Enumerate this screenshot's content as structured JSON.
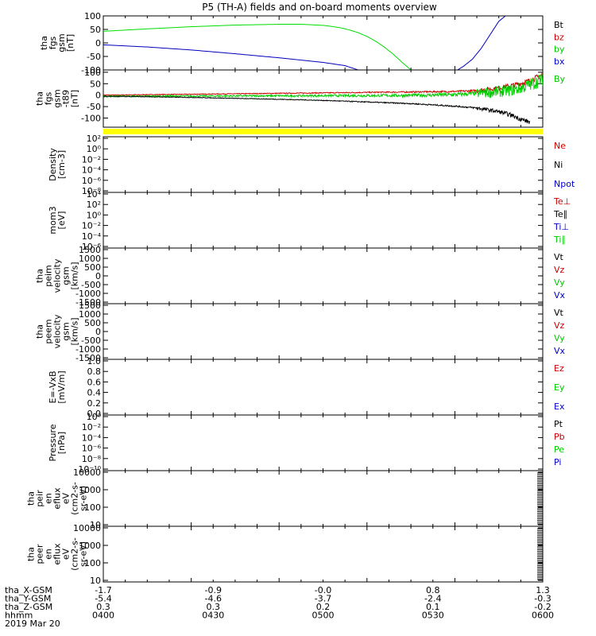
{
  "title": "P5 (TH-A) fields and on-board moments overview",
  "chart_data": [
    {
      "id": "fgs",
      "type": "line",
      "ylabel": [
        "tha",
        "fgs",
        "gsm",
        "[nT]"
      ],
      "ylim": [
        -100,
        100
      ],
      "yticks": [
        "100",
        "50",
        "0",
        "-50",
        "-100"
      ],
      "tick_values": [
        100,
        50,
        0,
        -50,
        -100
      ],
      "legend": [
        {
          "name": "Bt",
          "color": "#000000"
        },
        {
          "name": "bz",
          "color": "#cc0000"
        },
        {
          "name": "by",
          "color": "#00cc00"
        },
        {
          "name": "bx",
          "color": "#0000cc"
        }
      ],
      "series": [
        {
          "name": "by",
          "color": "#00dd00",
          "x": [
            0,
            0.1,
            0.2,
            0.3,
            0.4,
            0.45,
            0.5,
            0.52,
            0.54,
            0.56,
            0.58,
            0.6,
            0.62,
            0.64,
            0.66,
            0.68,
            0.7
          ],
          "y": [
            43,
            52,
            60,
            66,
            69,
            69,
            65,
            61,
            56,
            48,
            38,
            24,
            6,
            -16,
            -42,
            -72,
            -100
          ]
        },
        {
          "name": "bx",
          "color": "#0000bb",
          "x": [
            0,
            0.05,
            0.1,
            0.2,
            0.3,
            0.4,
            0.5,
            0.55,
            0.58
          ],
          "y": [
            -7,
            -11,
            -15,
            -26,
            -40,
            -55,
            -72,
            -84,
            -100
          ]
        },
        {
          "name": "Bt",
          "color": "#0000bb",
          "x": [
            0.806,
            0.82,
            0.84,
            0.86,
            0.88,
            0.9,
            0.915
          ],
          "y": [
            -100,
            -86,
            -60,
            -20,
            30,
            80,
            100
          ]
        }
      ]
    },
    {
      "id": "fgs_dsl",
      "type": "line",
      "ylabel": [
        "tha",
        "fgs",
        "gsm",
        "-t89",
        "[nT]"
      ],
      "ylim": [
        -140,
        110
      ],
      "yticks": [
        "100",
        "50",
        "0",
        "-50",
        "-100"
      ],
      "tick_values": [
        100,
        50,
        0,
        -50,
        -100
      ],
      "legend": [
        {
          "name": "By",
          "color": "#00cc00"
        }
      ],
      "series": [
        {
          "name": "Bz",
          "color": "#cc0000",
          "x": [
            0,
            0.2,
            0.4,
            0.6,
            0.7,
            0.8,
            0.85,
            0.88,
            0.91,
            0.94,
            0.97,
            0.99,
            1.0
          ],
          "y": [
            0,
            4,
            8,
            12,
            14,
            16,
            20,
            26,
            34,
            46,
            62,
            80,
            92
          ],
          "noise": 6
        },
        {
          "name": "By",
          "color": "#00cc00",
          "x": [
            0,
            0.2,
            0.4,
            0.6,
            0.7,
            0.8,
            0.85,
            0.9,
            0.94,
            0.97,
            1.0
          ],
          "y": [
            -5,
            -4,
            -3,
            -2,
            -1,
            2,
            8,
            15,
            25,
            45,
            70
          ],
          "noise": 14
        },
        {
          "name": "Bt",
          "color": "#000000",
          "x": [
            0,
            0.1,
            0.2,
            0.3,
            0.4,
            0.5,
            0.6,
            0.7,
            0.8,
            0.85,
            0.9,
            0.93,
            0.95,
            0.97
          ],
          "y": [
            -5,
            -7,
            -10,
            -14,
            -18,
            -23,
            -30,
            -37,
            -48,
            -56,
            -72,
            -88,
            -105,
            -118
          ],
          "noise": 5
        }
      ]
    },
    {
      "id": "density",
      "type": "line",
      "ylabel": [
        "Density",
        "[cm-3]"
      ],
      "yticks": [
        "10²",
        "10⁰",
        "10⁻²",
        "10⁻⁴",
        "10⁻⁶",
        "10⁻⁸"
      ],
      "legend": [
        {
          "name": "Ne",
          "color": "#cc0000"
        },
        {
          "name": "Ni",
          "color": "#000000"
        },
        {
          "name": "Npot",
          "color": "#0000cc"
        }
      ],
      "series": []
    },
    {
      "id": "temp",
      "type": "line",
      "ylabel": [
        "mom3",
        "[eV]"
      ],
      "yticks": [
        "10⁴",
        "10²",
        "10⁰",
        "10⁻²",
        "10⁻⁴",
        "10⁻⁶"
      ],
      "legend": [
        {
          "name": "Te⊥",
          "color": "#cc0000"
        },
        {
          "name": "Te∥",
          "color": "#000000"
        },
        {
          "name": "Ti⊥",
          "color": "#0000cc"
        },
        {
          "name": "Ti∥",
          "color": "#00cc00"
        }
      ],
      "series": []
    },
    {
      "id": "vi",
      "type": "line",
      "ylabel": [
        "tha",
        "peim",
        "velocity",
        "gsm",
        "[km/s]"
      ],
      "yticks": [
        "1500",
        "1000",
        "500",
        "0",
        "-500",
        "-1000",
        "-1500"
      ],
      "legend": [
        {
          "name": "Vt",
          "color": "#000000"
        },
        {
          "name": "Vz",
          "color": "#cc0000"
        },
        {
          "name": "Vy",
          "color": "#00cc00"
        },
        {
          "name": "Vx",
          "color": "#0000cc"
        }
      ],
      "series": []
    },
    {
      "id": "ve",
      "type": "line",
      "ylabel": [
        "tha",
        "peem",
        "velocity",
        "gsm",
        "[km/s]"
      ],
      "yticks": [
        "1500",
        "1000",
        "500",
        "0",
        "-500",
        "-1000",
        "-1500"
      ],
      "legend": [
        {
          "name": "Vt",
          "color": "#000000"
        },
        {
          "name": "Vz",
          "color": "#cc0000"
        },
        {
          "name": "Vy",
          "color": "#00cc00"
        },
        {
          "name": "Vx",
          "color": "#0000cc"
        }
      ],
      "series": []
    },
    {
      "id": "efield",
      "type": "line",
      "ylabel": [
        "E=-VxB",
        "[mV/m]"
      ],
      "yticks": [
        "1.0",
        "0.8",
        "0.6",
        "0.4",
        "0.2",
        "0.0"
      ],
      "legend": [
        {
          "name": "Ez",
          "color": "#cc0000"
        },
        {
          "name": "Ey",
          "color": "#00cc00"
        },
        {
          "name": "Ex",
          "color": "#0000cc"
        }
      ],
      "series": []
    },
    {
      "id": "pressure",
      "type": "line",
      "ylabel": [
        "Pressure",
        "[nPa]"
      ],
      "yticks": [
        "10⁰",
        "10⁻²",
        "10⁻⁴",
        "10⁻⁶",
        "10⁻⁸",
        "10⁻¹⁰"
      ],
      "legend": [
        {
          "name": "Pt",
          "color": "#000000"
        },
        {
          "name": "Pb",
          "color": "#cc0000"
        },
        {
          "name": "Pe",
          "color": "#00cc00"
        },
        {
          "name": "Pi",
          "color": "#0000cc"
        }
      ],
      "series": []
    },
    {
      "id": "peir",
      "type": "spectrogram",
      "ylabel": [
        "tha",
        "peir",
        "en",
        "eflux",
        "eV",
        "(cm2-s-",
        "sr-eV)"
      ],
      "yticks": [
        "10000",
        "1000",
        "100",
        "10"
      ],
      "legend": [],
      "series": []
    },
    {
      "id": "peer",
      "type": "spectrogram",
      "ylabel": [
        "tha",
        "peer",
        "en",
        "eflux",
        "eV",
        "(cm2-s-",
        "sr-eV)"
      ],
      "yticks": [
        "10000",
        "1000",
        "100",
        "10"
      ],
      "legend": [],
      "series": []
    }
  ],
  "axis_table": {
    "rows": [
      {
        "label": "tha_X-GSM",
        "values": [
          "-1.7",
          "-0.9",
          "-0.0",
          "0.8",
          "1.3"
        ]
      },
      {
        "label": "tha_Y-GSM",
        "values": [
          "-5.4",
          "-4.6",
          "-3.7",
          "-2.4",
          "-0.3"
        ]
      },
      {
        "label": "tha_Z-GSM",
        "values": [
          "0.3",
          "0.3",
          "0.2",
          "0.1",
          "-0.2"
        ]
      },
      {
        "label": "hhmm",
        "values": [
          "0400",
          "0430",
          "0500",
          "0530",
          "0600"
        ]
      }
    ],
    "date": "2019 Mar 20"
  },
  "colors": {
    "status_bar": "#ffff00"
  }
}
